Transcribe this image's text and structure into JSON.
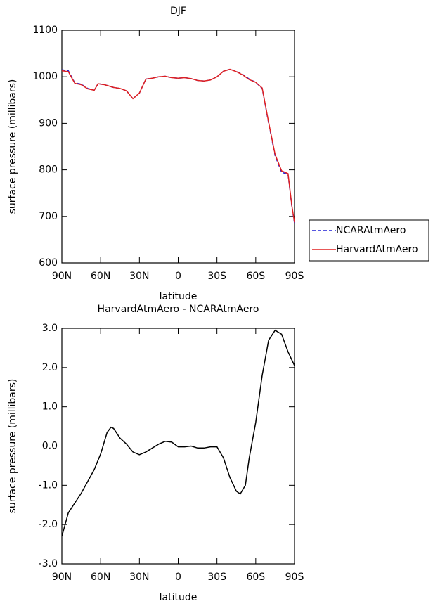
{
  "chart_data": [
    {
      "type": "line",
      "title": "DJF",
      "xlabel": "latitude",
      "ylabel": "surface pressure (millibars)",
      "x": [
        90,
        85,
        80,
        75,
        70,
        65,
        62,
        57,
        50,
        45,
        40,
        35,
        30,
        25,
        20,
        15,
        10,
        5,
        0,
        -5,
        -10,
        -15,
        -20,
        -25,
        -30,
        -35,
        -40,
        -45,
        -50,
        -55,
        -60,
        -65,
        -70,
        -75,
        -80,
        -85,
        -88,
        -90
      ],
      "series": [
        {
          "name": "NCARAtmAero",
          "color": "#1f1fd6",
          "dashed": true,
          "values": [
            1015,
            1013,
            987,
            984,
            975,
            971,
            985,
            983,
            977,
            975,
            970,
            953,
            965,
            995,
            997,
            1000,
            1001,
            998,
            997,
            998,
            996,
            992,
            991,
            993,
            1000,
            1012,
            1016,
            1012,
            1005,
            995,
            988,
            975,
            900,
            830,
            795,
            790,
            720,
            685
          ]
        },
        {
          "name": "HarvardAtmAero",
          "color": "#e02020",
          "dashed": false,
          "values": [
            1013,
            1011,
            986,
            983,
            974,
            971,
            985,
            983,
            977,
            975,
            970,
            953,
            965,
            995,
            997,
            1000,
            1001,
            998,
            997,
            998,
            996,
            992,
            991,
            993,
            1000,
            1012,
            1016,
            1011,
            1004,
            994,
            988,
            976,
            902,
            833,
            798,
            792,
            722,
            687
          ]
        }
      ],
      "xlim": [
        90,
        -90
      ],
      "xticks": [
        {
          "value": 90,
          "label": "90N"
        },
        {
          "value": 60,
          "label": "60N"
        },
        {
          "value": 30,
          "label": "30N"
        },
        0,
        {
          "value": -30,
          "label": "30S"
        },
        {
          "value": -60,
          "label": "60S"
        },
        {
          "value": -90,
          "label": "90S"
        }
      ],
      "ylim": [
        600,
        1100
      ],
      "yticks": [
        600,
        700,
        800,
        900,
        1000,
        1100
      ],
      "legend_position": "right"
    },
    {
      "type": "line",
      "title": "HarvardAtmAero - NCARAtmAero",
      "xlabel": "latitude",
      "ylabel": "surface pressure (millibars)",
      "x": [
        90,
        85,
        80,
        75,
        70,
        65,
        60,
        55,
        52,
        50,
        45,
        40,
        35,
        30,
        25,
        20,
        15,
        10,
        5,
        0,
        -5,
        -10,
        -15,
        -20,
        -25,
        -30,
        -35,
        -40,
        -45,
        -48,
        -52,
        -55,
        -60,
        -65,
        -70,
        -75,
        -80,
        -85,
        -90
      ],
      "series": [
        {
          "color": "#000000",
          "dashed": false,
          "values": [
            -2.3,
            -1.7,
            -1.45,
            -1.2,
            -0.9,
            -0.6,
            -0.2,
            0.35,
            0.48,
            0.45,
            0.2,
            0.05,
            -0.15,
            -0.22,
            -0.15,
            -0.05,
            0.05,
            0.12,
            0.1,
            -0.02,
            -0.02,
            0,
            -0.05,
            -0.05,
            -0.02,
            -0.02,
            -0.3,
            -0.8,
            -1.15,
            -1.22,
            -1.0,
            -0.3,
            0.6,
            1.8,
            2.7,
            2.95,
            2.85,
            2.4,
            2.05
          ]
        }
      ],
      "xlim": [
        90,
        -90
      ],
      "xticks": [
        {
          "value": 90,
          "label": "90N"
        },
        {
          "value": 60,
          "label": "60N"
        },
        {
          "value": 30,
          "label": "30N"
        },
        0,
        {
          "value": -30,
          "label": "30S"
        },
        {
          "value": -60,
          "label": "60S"
        },
        {
          "value": -90,
          "label": "90S"
        }
      ],
      "ylim": [
        -3,
        3
      ],
      "yticks": [
        {
          "value": -3,
          "label": "-3.0"
        },
        {
          "value": -2,
          "label": "-2.0"
        },
        {
          "value": -1,
          "label": "-1.0"
        },
        {
          "value": 0,
          "label": "0.0"
        },
        {
          "value": 1,
          "label": "1.0"
        },
        {
          "value": 2,
          "label": "2.0"
        },
        {
          "value": 3,
          "label": "3.0"
        }
      ]
    }
  ]
}
